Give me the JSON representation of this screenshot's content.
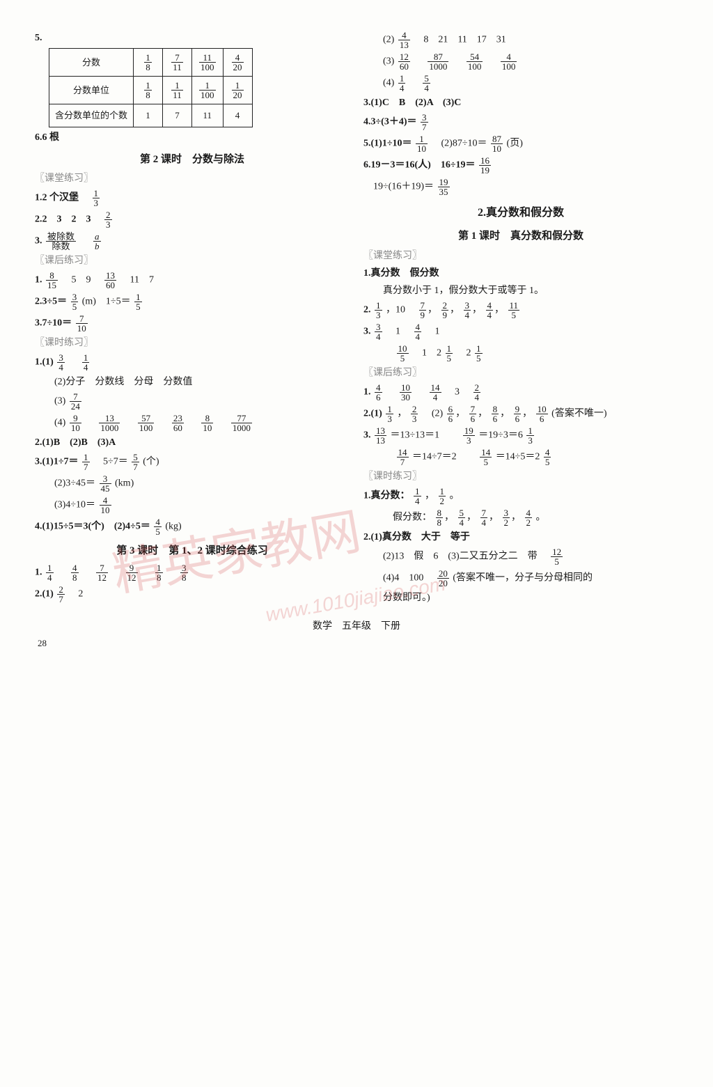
{
  "left": {
    "q5_label": "5.",
    "table": {
      "row_headers": [
        "分数",
        "分数单位",
        "含分数单位的个数"
      ],
      "cols": [
        [
          {
            "n": "1",
            "d": "8"
          },
          {
            "n": "1",
            "d": "8"
          },
          "1"
        ],
        [
          {
            "n": "7",
            "d": "11"
          },
          {
            "n": "1",
            "d": "11"
          },
          "7"
        ],
        [
          {
            "n": "11",
            "d": "100"
          },
          {
            "n": "1",
            "d": "100"
          },
          "11"
        ],
        [
          {
            "n": "4",
            "d": "20"
          },
          {
            "n": "1",
            "d": "20"
          },
          "4"
        ]
      ]
    },
    "q6": "6.6 根",
    "title_lesson2": "第 2 课时　分数与除法",
    "blockA_hint": "〖课堂练习〗",
    "a1_prefix": "1.2 个汉堡　",
    "a1_frac": {
      "n": "1",
      "d": "3"
    },
    "a2": "2.2　3　2　3　",
    "a2_frac": {
      "n": "2",
      "d": "3"
    },
    "a3_prefix": "3.",
    "a3_frac1": {
      "n": "被除数",
      "d": "除数"
    },
    "a3_gap": "　",
    "a3_frac2": {
      "n": "a",
      "d": "b"
    },
    "blockB_hint": "〖课后练习〗",
    "b1_prefix": "1.",
    "b1_f1": {
      "n": "8",
      "d": "15"
    },
    "b1_mid": "　5　9　",
    "b1_f2": {
      "n": "13",
      "d": "60"
    },
    "b1_tail": "　11　7",
    "b2_prefix": "2.3÷5＝",
    "b2_f1": {
      "n": "3",
      "d": "5"
    },
    "b2_mid": "(m)　1÷5＝",
    "b2_f2": {
      "n": "1",
      "d": "5"
    },
    "b3_prefix": "3.7÷10＝",
    "b3_f": {
      "n": "7",
      "d": "10"
    },
    "blockC_hint": "〖课时练习〗",
    "c1_1_prefix": "1.(1)",
    "c1_1_f1": {
      "n": "3",
      "d": "4"
    },
    "c1_1_gap": "　",
    "c1_1_f2": {
      "n": "1",
      "d": "4"
    },
    "c1_2": "(2)分子　分数线　分母　分数值",
    "c1_3_prefix": "(3)",
    "c1_3_f": {
      "n": "7",
      "d": "24"
    },
    "c1_4_prefix": "(4)",
    "c1_4_fracs": [
      {
        "n": "9",
        "d": "10"
      },
      {
        "n": "13",
        "d": "1000"
      },
      {
        "n": "57",
        "d": "100"
      },
      {
        "n": "23",
        "d": "60"
      },
      {
        "n": "8",
        "d": "10"
      },
      {
        "n": "77",
        "d": "1000"
      }
    ],
    "c2": "2.(1)B　(2)B　(3)A",
    "c3_1_prefix": "3.(1)1÷7＝",
    "c3_1_f1": {
      "n": "1",
      "d": "7"
    },
    "c3_1_mid": "　5÷7＝",
    "c3_1_f2": {
      "n": "5",
      "d": "7"
    },
    "c3_1_tail": "(个)",
    "c3_2_prefix": "(2)3÷45＝",
    "c3_2_f": {
      "n": "3",
      "d": "45"
    },
    "c3_2_tail": "(km)",
    "c3_3_prefix": "(3)4÷10＝",
    "c3_3_f": {
      "n": "4",
      "d": "10"
    },
    "c4_prefix": "4.(1)15÷5＝3(个)　(2)4÷5＝",
    "c4_f": {
      "n": "4",
      "d": "5"
    },
    "c4_tail": "(kg)",
    "title_lesson3": "第 3 课时　第 1、2 课时综合练习",
    "d1_prefix": "1.",
    "d1_fracs": [
      {
        "n": "1",
        "d": "4"
      },
      {
        "n": "4",
        "d": "8"
      },
      {
        "n": "7",
        "d": "12"
      },
      {
        "n": "9",
        "d": "12"
      },
      {
        "n": "1",
        "d": "8"
      },
      {
        "n": "3",
        "d": "8"
      }
    ],
    "d2_prefix": "2.(1)",
    "d2_f": {
      "n": "2",
      "d": "7"
    },
    "d2_tail": "　2"
  },
  "right": {
    "r1_prefix": "(2)",
    "r1_f": {
      "n": "4",
      "d": "13"
    },
    "r1_tail": "　8　21　11　17　31",
    "r2_prefix": "(3)",
    "r2_fracs": [
      {
        "n": "12",
        "d": "60"
      },
      {
        "n": "87",
        "d": "1000"
      },
      {
        "n": "54",
        "d": "100"
      },
      {
        "n": "4",
        "d": "100"
      }
    ],
    "r3_prefix": "(4)",
    "r3_f1": {
      "n": "1",
      "d": "4"
    },
    "r3_gap": "　",
    "r3_f2": {
      "n": "5",
      "d": "4"
    },
    "r4": "3.(1)C　B　(2)A　(3)C",
    "r5_prefix": "4.3÷(3＋4)＝",
    "r5_f": {
      "n": "3",
      "d": "7"
    },
    "r6a_prefix": "5.(1)1÷10＝",
    "r6a_f": {
      "n": "1",
      "d": "10"
    },
    "r6b_prefix": "　(2)87÷10＝",
    "r6b_f": {
      "n": "87",
      "d": "10"
    },
    "r6b_tail": "(页)",
    "r7a_prefix": "6.19－3＝16(人)　16÷19＝",
    "r7a_f": {
      "n": "16",
      "d": "19"
    },
    "r7b_prefix": "　19÷(16＋19)＝",
    "r7b_f": {
      "n": "19",
      "d": "35"
    },
    "sec2_title": "2.真分数和假分数",
    "sec2_sub": "第 1 课时　真分数和假分数",
    "blockE_hint": "〖课堂练习〗",
    "e1": "1.真分数　假分数",
    "e1b": "真分数小于 1，假分数大于或等于 1。",
    "e2_prefix_a": "2.",
    "e2_f1": {
      "n": "1",
      "d": "3"
    },
    "e2_sep": "，10　",
    "e2_fracs": [
      {
        "n": "7",
        "d": "9"
      },
      {
        "n": "2",
        "d": "9"
      },
      {
        "n": "3",
        "d": "4"
      },
      {
        "n": "4",
        "d": "4"
      },
      {
        "n": "11",
        "d": "5"
      }
    ],
    "e3_prefix": "3.",
    "e3_f1": {
      "n": "3",
      "d": "4"
    },
    "e3_mid1": "　1　",
    "e3_f2": {
      "n": "4",
      "d": "4"
    },
    "e3_mid2": "　1",
    "e4_prefix": "　",
    "e4_f1": {
      "n": "10",
      "d": "5"
    },
    "e4_mid1": "　1　2",
    "e4_f2": {
      "n": "1",
      "d": "5"
    },
    "e4_mid2": "　2",
    "e4_f3": {
      "n": "1",
      "d": "5"
    },
    "blockF_hint": "〖课后练习〗",
    "f1_prefix": "1.",
    "f1_fracs": [
      {
        "n": "4",
        "d": "6"
      },
      {
        "n": "10",
        "d": "30"
      },
      {
        "n": "14",
        "d": "4"
      }
    ],
    "f1_mid": "　3　",
    "f1_last": {
      "n": "2",
      "d": "4"
    },
    "f2_prefix": "2.(1)",
    "f2_f1": {
      "n": "1",
      "d": "3"
    },
    "f2_comma": "，",
    "f2_f2": {
      "n": "2",
      "d": "3"
    },
    "f2b_prefix": "　(2)",
    "f2b_fracs": [
      {
        "n": "6",
        "d": "6"
      },
      {
        "n": "7",
        "d": "6"
      },
      {
        "n": "8",
        "d": "6"
      },
      {
        "n": "9",
        "d": "6"
      },
      {
        "n": "10",
        "d": "6"
      }
    ],
    "f2b_tail": "(答案不唯一)",
    "f3_prefix": "3.",
    "f3_f1": {
      "n": "13",
      "d": "13"
    },
    "f3_mid1": "＝13÷13＝1　　",
    "f3_f2": {
      "n": "19",
      "d": "3"
    },
    "f3_mid2": "＝19÷3＝6",
    "f3_f3": {
      "n": "1",
      "d": "3"
    },
    "f3b_prefix": "　",
    "f3b_f1": {
      "n": "14",
      "d": "7"
    },
    "f3b_mid1": "＝14÷7＝2　　",
    "f3b_f2": {
      "n": "14",
      "d": "5"
    },
    "f3b_mid2": "＝14÷5＝2",
    "f3b_f3": {
      "n": "4",
      "d": "5"
    },
    "blockG_hint": "〖课时练习〗",
    "g1_prefix": "1.真分数：",
    "g1_f1": {
      "n": "1",
      "d": "4"
    },
    "g1_c1": "，",
    "g1_f2": {
      "n": "1",
      "d": "2"
    },
    "g1_tail": "。",
    "g1b_prefix": "　假分数：",
    "g1b_fracs": [
      {
        "n": "8",
        "d": "8"
      },
      {
        "n": "5",
        "d": "4"
      },
      {
        "n": "7",
        "d": "4"
      },
      {
        "n": "3",
        "d": "2"
      },
      {
        "n": "4",
        "d": "2"
      }
    ],
    "g1b_tail": "。",
    "g2": "2.(1)真分数　大于　等于",
    "g2b_prefix": "(2)13　假　6　(3)二又五分之二　带　",
    "g2b_f": {
      "n": "12",
      "d": "5"
    },
    "g2c_prefix": "(4)4　100　",
    "g2c_f": {
      "n": "20",
      "d": "20"
    },
    "g2c_tail": "(答案不唯一，分子与分母相同的",
    "g2d": "分数即可。)"
  },
  "watermark": "精英家教网",
  "watermark2": "www.1010jiajiao.com",
  "footer": "数学　五年级　下册",
  "pagenum": "28"
}
